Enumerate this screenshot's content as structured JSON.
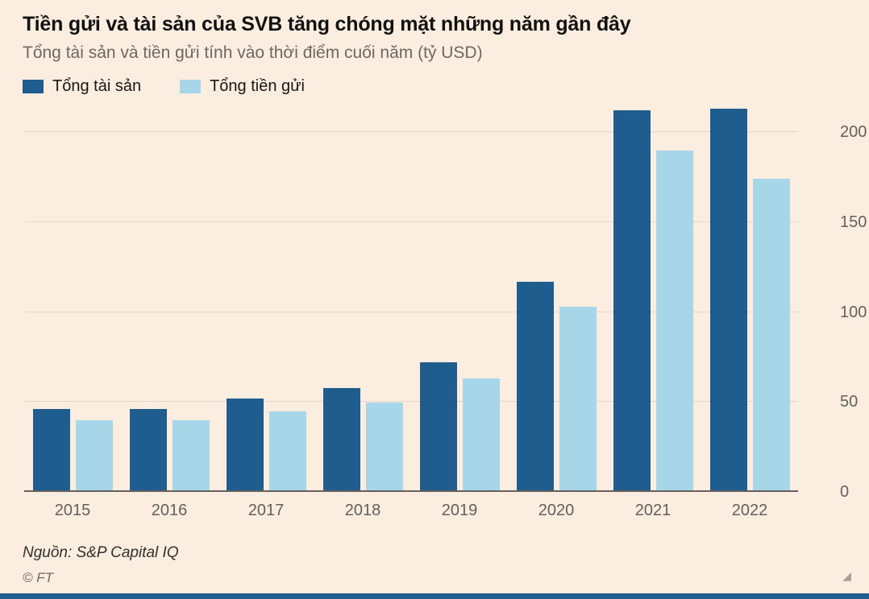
{
  "header": {
    "title": "Tiền gửi và tài sản của SVB tăng chóng mặt những năm gần đây",
    "subtitle": "Tổng tài sản và tiền gửi tính vào thời điểm cuối năm (tỷ USD)"
  },
  "legend": [
    {
      "label": "Tổng tài sản",
      "color": "#1f5d8f"
    },
    {
      "label": "Tổng tiền gửi",
      "color": "#a6d6e8"
    }
  ],
  "chart_data": {
    "type": "bar",
    "title": "Tiền gửi và tài sản của SVB tăng chóng mặt những năm gần đây",
    "subtitle": "Tổng tài sản và tiền gửi tính vào thời điểm cuối năm (tỷ USD)",
    "categories": [
      "2015",
      "2016",
      "2017",
      "2018",
      "2019",
      "2020",
      "2021",
      "2022"
    ],
    "series": [
      {
        "name": "Tổng tài sản",
        "color": "#1f5d8f",
        "values": [
          45,
          45,
          51,
          57,
          71,
          116,
          211,
          212
        ]
      },
      {
        "name": "Tổng tiền gửi",
        "color": "#a6d6e8",
        "values": [
          39,
          39,
          44,
          49,
          62,
          102,
          189,
          173
        ]
      }
    ],
    "xlabel": "",
    "ylabel": "",
    "ylim": [
      0,
      200
    ],
    "yticks": [
      0,
      50,
      100,
      150,
      200
    ],
    "grid": true,
    "legend_position": "top-left",
    "tick_side": "right"
  },
  "footer": {
    "source": "Nguồn: S&P Capital IQ",
    "copyright": "© FT"
  },
  "icons": {
    "resize_handle": "◢"
  },
  "colors": {
    "background": "#fbeddf",
    "assets_bar": "#1f5d8f",
    "deposits_bar": "#a6d6e8",
    "axis_text": "#66605c",
    "bottom_bar": "#1f5d8f"
  }
}
